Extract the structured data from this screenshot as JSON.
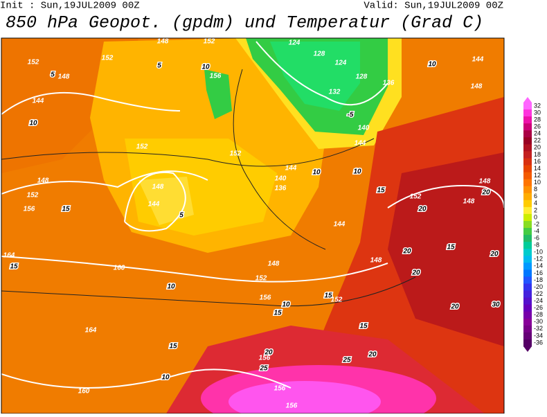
{
  "header": {
    "init": "Init : Sun,19JUL2009 00Z",
    "valid": "Valid: Sun,19JUL2009 00Z",
    "title": "850 hPa Geopot. (gpdm) und Temperatur (Grad C)"
  },
  "colorbar": {
    "levels": [
      32,
      30,
      28,
      26,
      24,
      22,
      20,
      18,
      16,
      14,
      12,
      10,
      8,
      6,
      4,
      2,
      0,
      -2,
      -4,
      -6,
      -8,
      -10,
      -12,
      -14,
      -16,
      -18,
      -20,
      -22,
      -24,
      -26,
      -28,
      -30,
      -32,
      -34,
      -36
    ],
    "colors": [
      "#ff66ff",
      "#ff33dd",
      "#ee11aa",
      "#cc0077",
      "#aa0044",
      "#990022",
      "#b01020",
      "#c42020",
      "#d83010",
      "#e84400",
      "#f45a00",
      "#ff7400",
      "#ff9000",
      "#ffac00",
      "#ffcc00",
      "#ffee33",
      "#ccee00",
      "#88dd22",
      "#44cc44",
      "#22bb66",
      "#00cc99",
      "#00cccc",
      "#00bbee",
      "#0099ff",
      "#0077ff",
      "#2255ff",
      "#3333ee",
      "#4422dd",
      "#5511cc",
      "#6600bb",
      "#7700aa",
      "#880099",
      "#770088",
      "#660077",
      "#550066"
    ]
  },
  "map": {
    "labels": [
      "152",
      "148",
      "5",
      "152",
      "148",
      "152",
      "5",
      "10",
      "156",
      "124",
      "128",
      "124",
      "128",
      "132",
      "136",
      "140",
      "-5",
      "144",
      "144",
      "148",
      "10",
      "144",
      "10",
      "152",
      "152",
      "144",
      "140",
      "136",
      "148",
      "144",
      "5",
      "148",
      "152",
      "156",
      "15",
      "10",
      "10",
      "15",
      "152",
      "148",
      "20",
      "148",
      "20",
      "144",
      "20",
      "15",
      "20",
      "164",
      "15",
      "160",
      "148",
      "152",
      "148",
      "10",
      "20",
      "156",
      "10",
      "15",
      "152",
      "15",
      "20",
      "30",
      "164",
      "15",
      "15",
      "20",
      "156",
      "25",
      "25",
      "20",
      "10",
      "160",
      "156",
      "156"
    ]
  }
}
